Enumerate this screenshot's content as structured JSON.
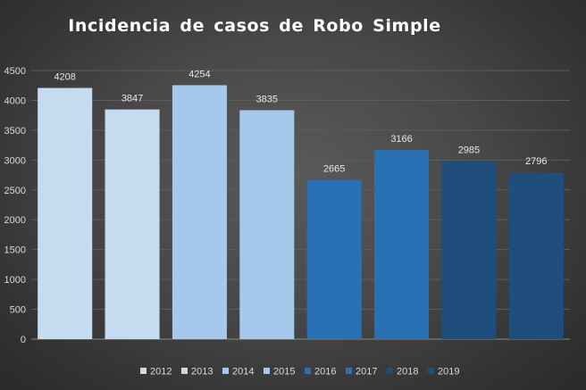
{
  "chart_data": {
    "type": "bar",
    "title": "Incidencia  de casos de Robo Simple",
    "categories": [
      "2012",
      "2013",
      "2014",
      "2015",
      "2016",
      "2017",
      "2018",
      "2019"
    ],
    "values": [
      4208,
      3847,
      4254,
      3835,
      2665,
      3166,
      2985,
      2796
    ],
    "colors": [
      "#c5dbf0",
      "#c5dbf0",
      "#a6c9eb",
      "#a6c9eb",
      "#2a70b4",
      "#2a70b4",
      "#1f4d7c",
      "#1f4d7c"
    ],
    "ylim": [
      0,
      4500
    ],
    "yticks": [
      0,
      500,
      1000,
      1500,
      2000,
      2500,
      3000,
      3500,
      4000,
      4500
    ],
    "xlabel": "",
    "ylabel": "",
    "grid": true,
    "legend_position": "bottom",
    "legend": [
      "2012",
      "2013",
      "2014",
      "2015",
      "2016",
      "2017",
      "2018",
      "2019"
    ],
    "background": "#404040",
    "gridline_color": "#5c5c5c",
    "text_color": "#d9d9d9"
  }
}
